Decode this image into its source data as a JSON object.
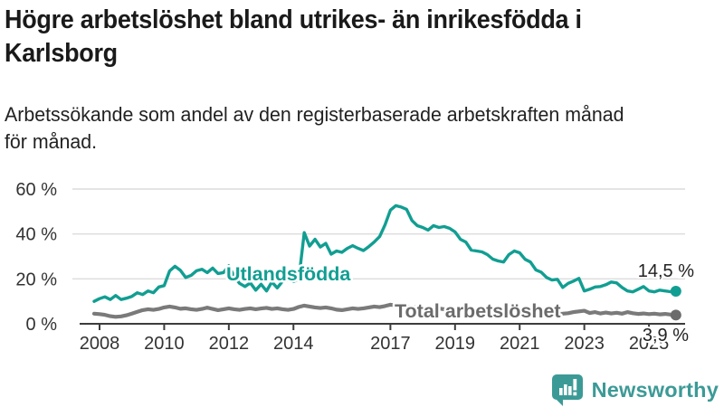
{
  "header": {
    "title": "Högre arbetslöshet bland utrikes- än inrikesfödda i\nKarlsborg",
    "subtitle": "Arbetssökande som andel av den registerbaserade arbetskraften månad\nför månad."
  },
  "chart_data": {
    "type": "line",
    "title": "Högre arbetslöshet bland utrikes- än inrikesfödda i Karlsborg",
    "subtitle": "Arbetssökande som andel av den registerbaserade arbetskraften månad för månad.",
    "unit": "%",
    "grid": true,
    "legend_position": "inline-labels",
    "x_axis": {
      "tick_years": [
        2008,
        2010,
        2012,
        2014,
        2017,
        2019,
        2021,
        2023,
        2025
      ],
      "labels": [
        "2008",
        "2010",
        "2012",
        "2014",
        "2017",
        "2019",
        "2021",
        "2023",
        "2025"
      ]
    },
    "y_axis": {
      "ticks": [
        0,
        20,
        40,
        60
      ],
      "labels": [
        "0 %",
        "20 %",
        "40 %",
        "60 %"
      ],
      "range": [
        0,
        62
      ]
    },
    "x_start": 2007.833,
    "x_step": 0.16667,
    "series": [
      {
        "name": "Utlandsfödda",
        "color": "#119E92",
        "end_label": "14,5 %",
        "end_value": 14.5,
        "values": [
          10.0,
          11.2,
          12.0,
          10.8,
          12.6,
          10.8,
          11.4,
          12.2,
          13.8,
          13.0,
          14.6,
          13.8,
          16.4,
          17.0,
          23.5,
          25.6,
          23.8,
          20.6,
          21.6,
          23.6,
          24.3,
          22.8,
          24.8,
          22.4,
          22.8,
          25.8,
          21.0,
          18.0,
          16.6,
          18.2,
          15.0,
          17.6,
          14.6,
          18.6,
          16.0,
          19.0,
          19.6,
          18.8,
          20.0,
          40.6,
          34.6,
          37.6,
          34.2,
          35.8,
          31.0,
          32.4,
          31.8,
          33.6,
          34.8,
          33.6,
          32.6,
          34.4,
          36.4,
          38.8,
          44.0,
          50.6,
          52.6,
          52.0,
          51.0,
          46.0,
          43.7,
          42.9,
          41.7,
          43.7,
          42.9,
          43.3,
          42.5,
          40.9,
          37.6,
          36.4,
          32.8,
          32.4,
          32.0,
          30.8,
          28.8,
          28.0,
          27.5,
          30.8,
          32.4,
          31.6,
          28.7,
          27.5,
          24.0,
          23.0,
          20.6,
          19.5,
          19.8,
          16.2,
          18.0,
          19.0,
          20.2,
          14.6,
          15.4,
          16.4,
          16.6,
          17.4,
          18.6,
          18.2,
          16.2,
          14.6,
          14.2,
          15.4,
          16.6,
          14.6,
          14.2,
          15.0,
          14.6,
          14.3,
          14.5
        ]
      },
      {
        "name": "Total arbetslöshet",
        "color": "#7A7A7A",
        "label_color": "#6B6B6B",
        "end_label": "3,9 %",
        "end_value": 3.9,
        "values": [
          4.5,
          4.3,
          4.0,
          3.4,
          3.1,
          3.3,
          3.8,
          4.5,
          5.3,
          6.1,
          6.5,
          6.2,
          6.6,
          7.3,
          7.7,
          7.3,
          6.7,
          6.9,
          6.5,
          6.2,
          6.6,
          7.2,
          6.6,
          6.1,
          6.5,
          6.9,
          6.5,
          6.2,
          6.6,
          6.9,
          6.5,
          6.8,
          7.1,
          6.6,
          6.9,
          6.5,
          6.2,
          6.6,
          7.5,
          8.1,
          7.7,
          7.3,
          7.0,
          7.3,
          6.9,
          6.3,
          6.1,
          6.5,
          6.9,
          6.6,
          6.9,
          7.3,
          7.7,
          7.4,
          7.9,
          8.5,
          8.2,
          7.9,
          7.7,
          7.4,
          7.2,
          7.0,
          6.8,
          7.1,
          6.8,
          6.5,
          6.3,
          6.1,
          6.3,
          6.0,
          5.8,
          6.0,
          6.2,
          6.5,
          7.0,
          7.2,
          6.9,
          6.6,
          6.3,
          6.1,
          5.8,
          5.5,
          5.2,
          5.0,
          4.8,
          4.6,
          4.4,
          4.5,
          4.7,
          5.2,
          5.5,
          5.8,
          4.8,
          5.2,
          4.6,
          5.0,
          4.6,
          4.9,
          4.5,
          5.2,
          4.7,
          4.4,
          4.6,
          4.3,
          4.5,
          4.2,
          4.4,
          4.1,
          3.9
        ]
      }
    ]
  },
  "footer": {
    "brand": "Newsworthy"
  },
  "colors": {
    "accent_teal": "#119E92",
    "logo_teal": "#3C9A96",
    "gray_line": "#7A7A7A",
    "gray_label": "#6B6B6B",
    "axis": "#3C3C3C",
    "grid": "#DCDCDC",
    "title_text": "#1A1A1A",
    "tick_text": "#333333",
    "value_text": "#222222"
  }
}
